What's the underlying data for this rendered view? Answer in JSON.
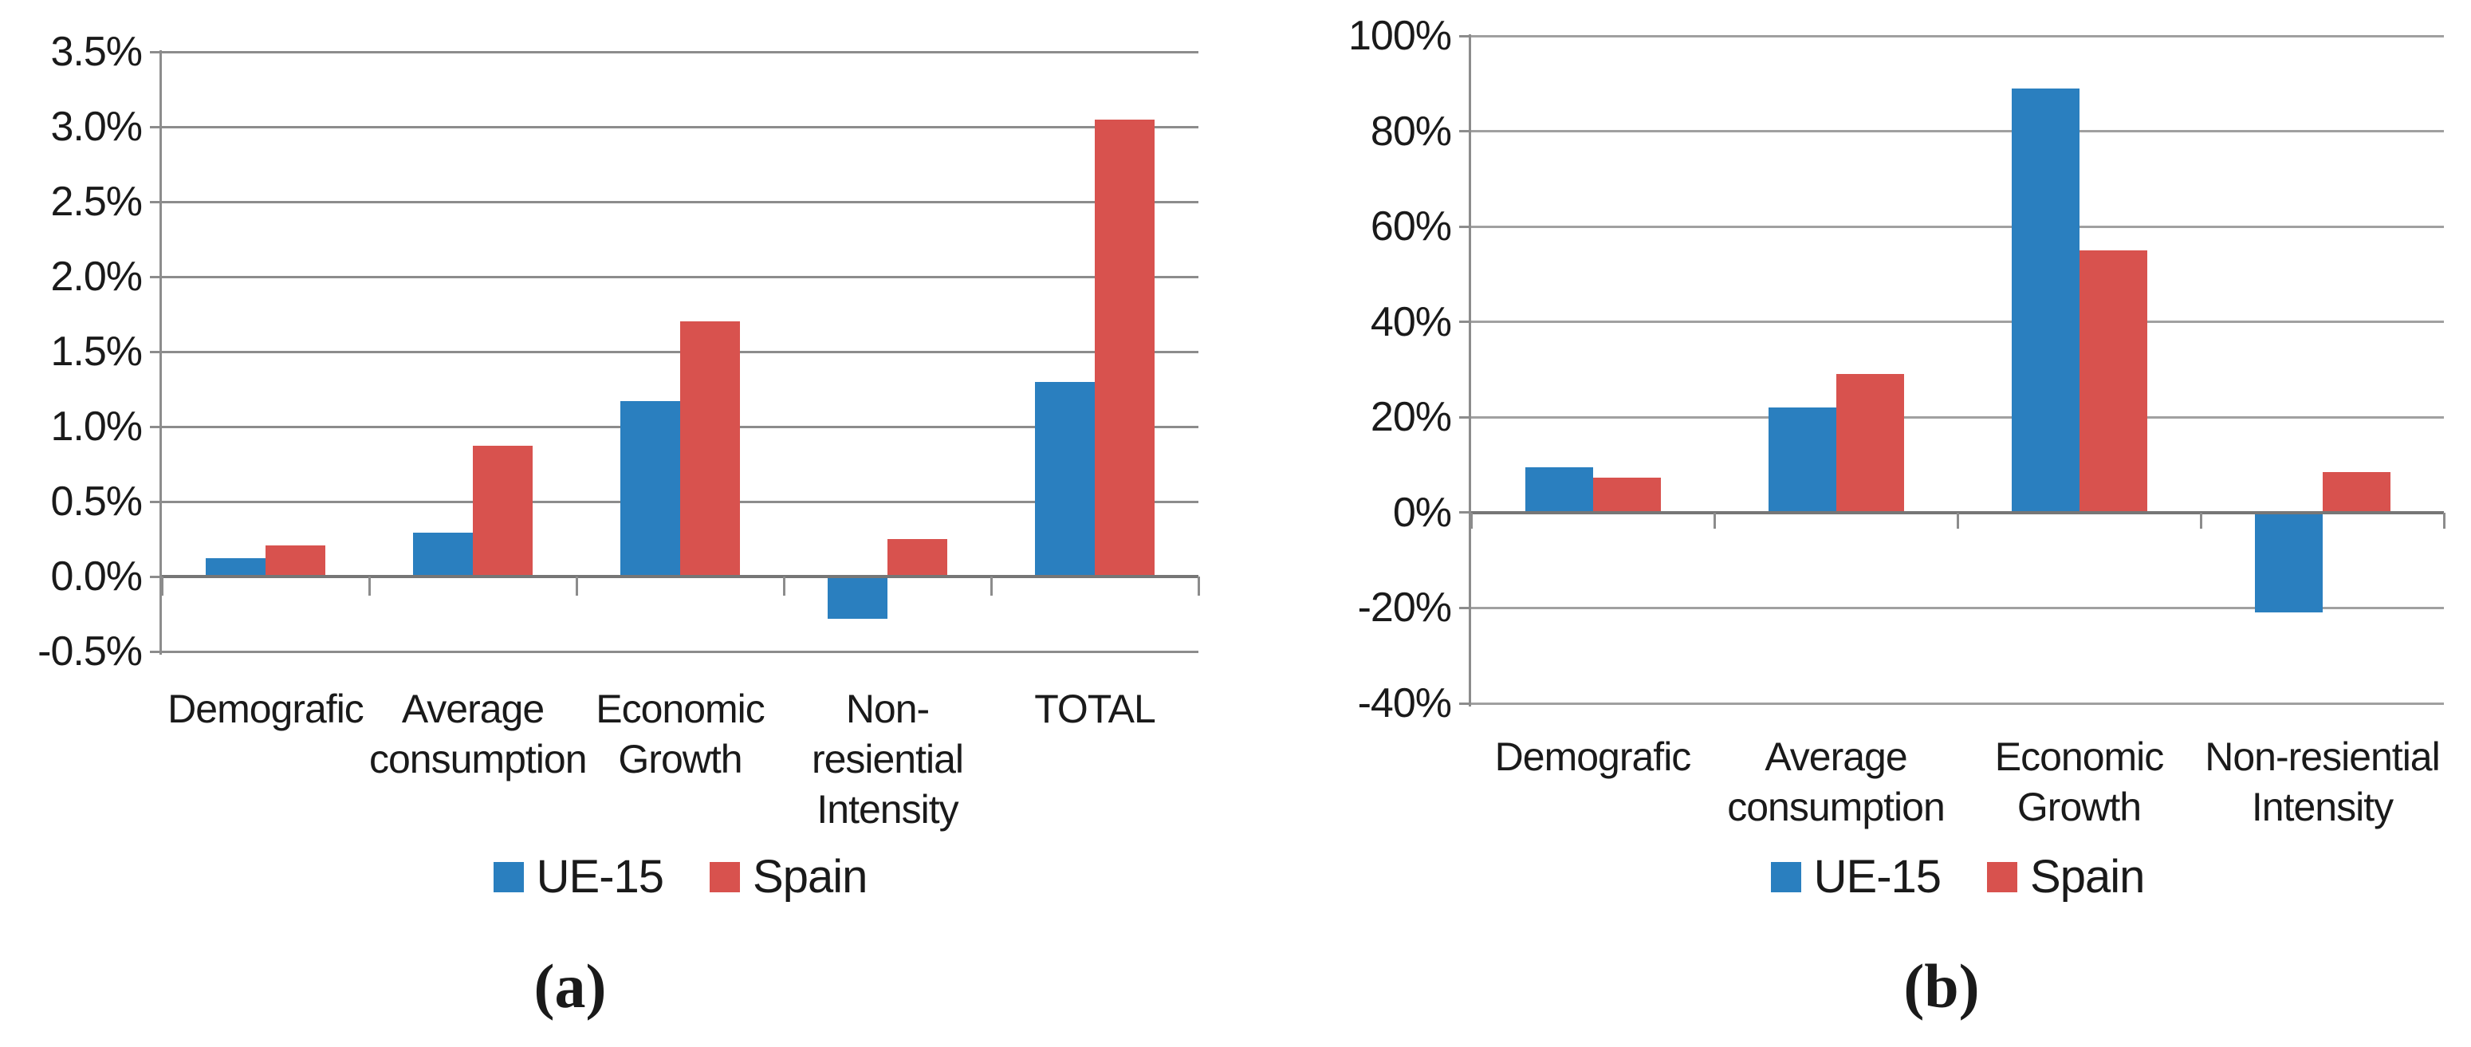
{
  "figure": {
    "panels": [
      {
        "caption": "(a)"
      },
      {
        "caption": "(b)"
      }
    ]
  },
  "chart_data": [
    {
      "type": "bar",
      "title": "",
      "xlabel": "",
      "ylabel": "",
      "categories": [
        "Demografic",
        "Average\nconsumption",
        "Economic\nGrowth",
        "Non-\nresiential\nIntensity",
        "TOTAL"
      ],
      "series": [
        {
          "name": "UE-15",
          "color": "#2a7fbf",
          "values": [
            0.12,
            0.29,
            1.17,
            -0.28,
            1.3
          ]
        },
        {
          "name": "Spain",
          "color": "#d8524e",
          "values": [
            0.21,
            0.87,
            1.7,
            0.25,
            3.05
          ]
        }
      ],
      "unit": "percent",
      "ylim": [
        -0.5,
        3.5
      ],
      "ytick_step": 0.5,
      "yticks": [
        "3.5%",
        "3.0%",
        "2.5%",
        "2.0%",
        "1.5%",
        "1.0%",
        "0.5%",
        "0.0%",
        "-0.5%"
      ],
      "grid": true,
      "legend_position": "bottom"
    },
    {
      "type": "bar",
      "title": "",
      "xlabel": "",
      "ylabel": "",
      "categories": [
        "Demografic",
        "Average\nconsumption",
        "Economic\nGrowth",
        "Non-resiential\nIntensity"
      ],
      "series": [
        {
          "name": "UE-15",
          "color": "#2a7fbf",
          "values": [
            9.5,
            22,
            89,
            -21
          ]
        },
        {
          "name": "Spain",
          "color": "#d8524e",
          "values": [
            7.3,
            29,
            55,
            8.5
          ]
        }
      ],
      "unit": "percent",
      "ylim": [
        -40,
        100
      ],
      "ytick_step": 20,
      "yticks": [
        "100%",
        "80%",
        "60%",
        "40%",
        "20%",
        "0%",
        "-20%",
        "-40%"
      ],
      "grid": true,
      "legend_position": "bottom"
    }
  ]
}
